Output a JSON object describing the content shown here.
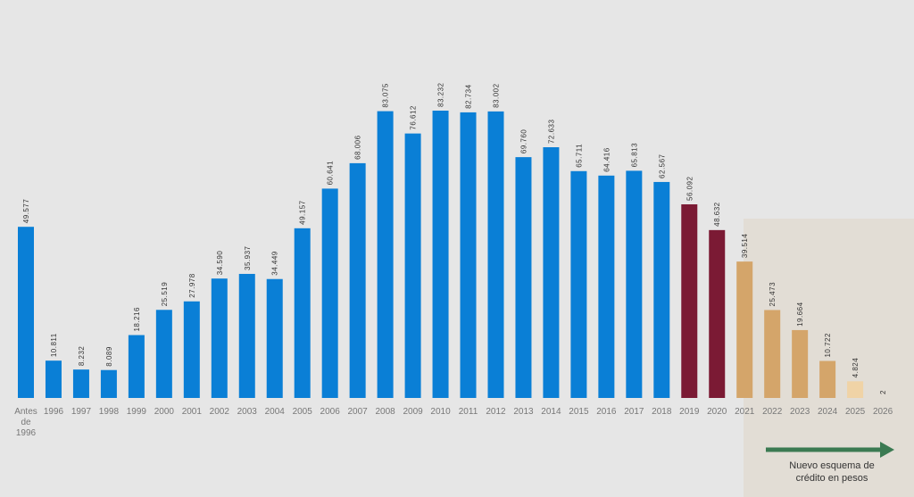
{
  "chart_data": {
    "type": "bar",
    "categories": [
      "Antes de 1996",
      "1996",
      "1997",
      "1998",
      "1999",
      "2000",
      "2001",
      "2002",
      "2003",
      "2004",
      "2005",
      "2006",
      "2007",
      "2008",
      "2009",
      "2010",
      "2011",
      "2012",
      "2013",
      "2014",
      "2015",
      "2016",
      "2017",
      "2018",
      "2019",
      "2020",
      "2021",
      "2022",
      "2023",
      "2024",
      "2025",
      "2026"
    ],
    "values": [
      49577,
      10811,
      8232,
      8089,
      18216,
      25519,
      27978,
      34590,
      35937,
      34449,
      49157,
      60641,
      68006,
      83075,
      76612,
      83232,
      82734,
      83002,
      69760,
      72633,
      65711,
      64416,
      65813,
      62567,
      56092,
      48632,
      39514,
      25473,
      19664,
      10722,
      4824,
      2
    ],
    "value_labels": [
      "49.577",
      "10.811",
      "8.232",
      "8.089",
      "18.216",
      "25.519",
      "27.978",
      "34.590",
      "35.937",
      "34.449",
      "49.157",
      "60.641",
      "68.006",
      "83.075",
      "76.612",
      "83.232",
      "82.734",
      "83.002",
      "69.760",
      "72.633",
      "65.711",
      "64.416",
      "65.813",
      "62.567",
      "56.092",
      "48.632",
      "39.514",
      "25.473",
      "19.664",
      "10.722",
      "4.824",
      "2"
    ],
    "colors": [
      "#0a7fd6",
      "#0a7fd6",
      "#0a7fd6",
      "#0a7fd6",
      "#0a7fd6",
      "#0a7fd6",
      "#0a7fd6",
      "#0a7fd6",
      "#0a7fd6",
      "#0a7fd6",
      "#0a7fd6",
      "#0a7fd6",
      "#0a7fd6",
      "#0a7fd6",
      "#0a7fd6",
      "#0a7fd6",
      "#0a7fd6",
      "#0a7fd6",
      "#0a7fd6",
      "#0a7fd6",
      "#0a7fd6",
      "#0a7fd6",
      "#0a7fd6",
      "#0a7fd6",
      "#7b1a34",
      "#7b1a34",
      "#d4a56a",
      "#d4a56a",
      "#d4a56a",
      "#d4a56a",
      "#f0d3a6",
      "#efe3cf"
    ],
    "annotation": "Nuevo esquema de crédito en pesos"
  }
}
